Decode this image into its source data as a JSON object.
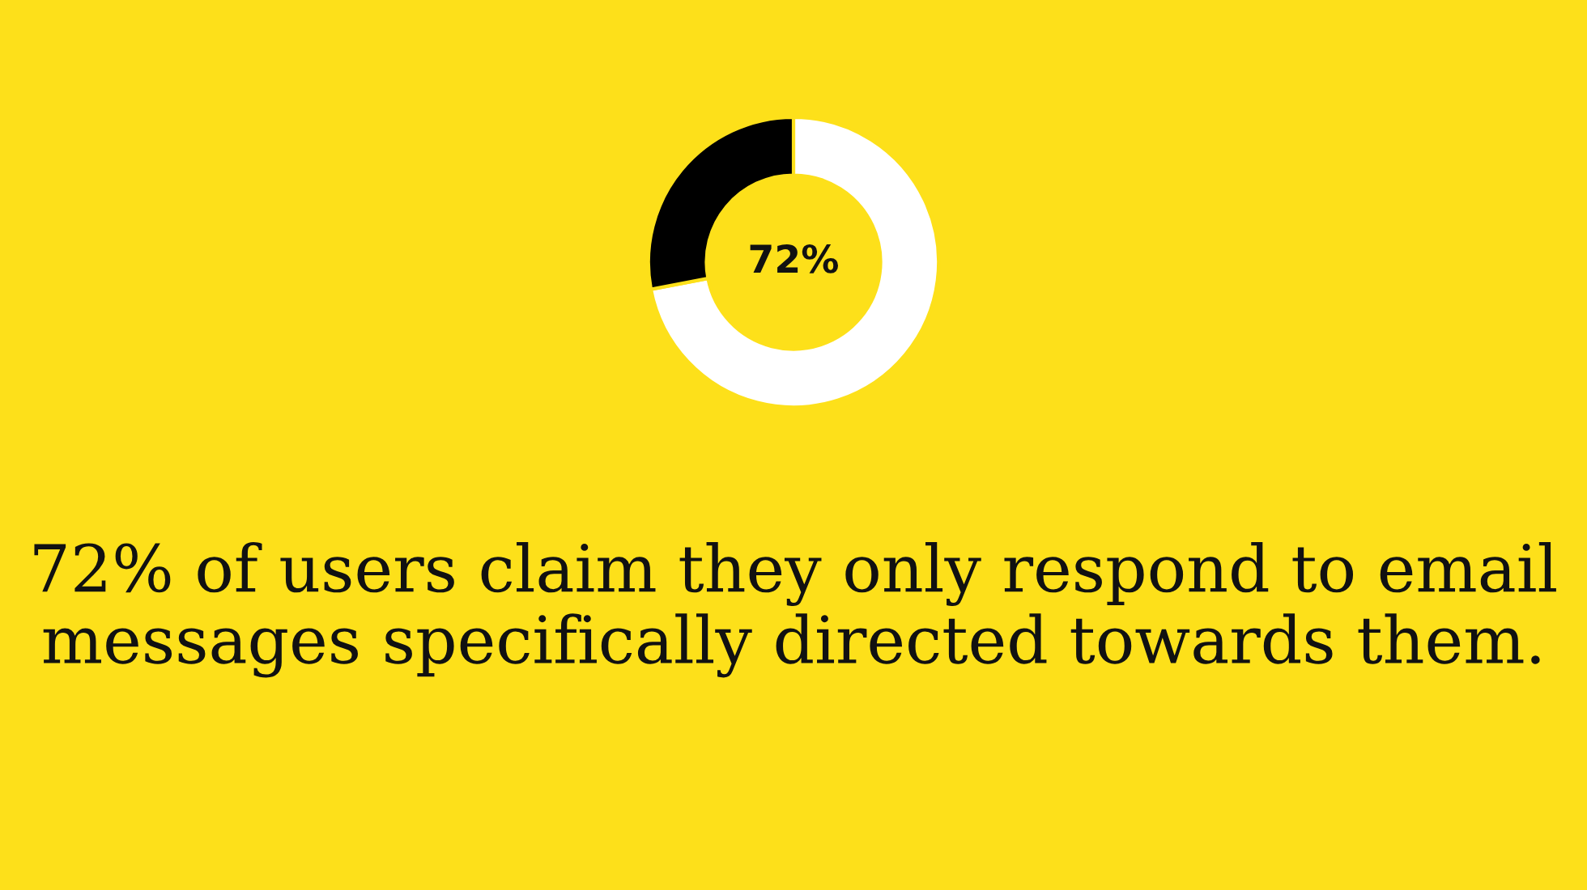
{
  "chart_data": {
    "type": "donut",
    "title": "72% of users claim they only respond to email messages specifically directed towards them.",
    "categories": [
      null,
      null
    ],
    "values": [
      72,
      28
    ],
    "colors": [
      "#ffffff",
      "#000000"
    ],
    "annotations": [
      "72%"
    ]
  }
}
